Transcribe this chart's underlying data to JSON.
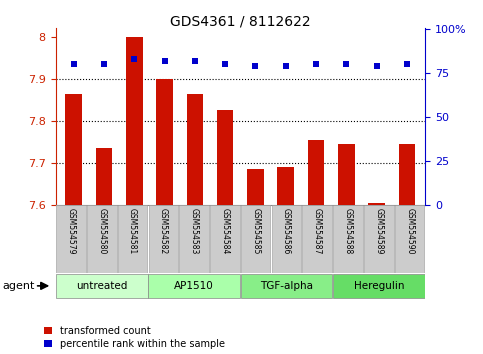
{
  "title": "GDS4361 / 8112622",
  "samples": [
    "GSM554579",
    "GSM554580",
    "GSM554581",
    "GSM554582",
    "GSM554583",
    "GSM554584",
    "GSM554585",
    "GSM554586",
    "GSM554587",
    "GSM554588",
    "GSM554589",
    "GSM554590"
  ],
  "bar_values": [
    7.865,
    7.735,
    8.0,
    7.9,
    7.865,
    7.825,
    7.685,
    7.69,
    7.755,
    7.745,
    7.605,
    7.745
  ],
  "percentile_values": [
    80,
    80,
    83,
    82,
    82,
    80,
    79,
    79,
    80,
    80,
    79,
    80
  ],
  "ylim_left": [
    7.6,
    8.02
  ],
  "ylim_right": [
    0,
    100.5
  ],
  "yticks_left": [
    7.6,
    7.7,
    7.8,
    7.9,
    8.0
  ],
  "ytick_labels_left": [
    "7.6",
    "7.7",
    "7.8",
    "7.9",
    "8"
  ],
  "yticks_right": [
    0,
    25,
    50,
    75,
    100
  ],
  "ytick_labels_right": [
    "0",
    "25",
    "50",
    "75",
    "100%"
  ],
  "hlines": [
    7.7,
    7.8,
    7.9
  ],
  "bar_color": "#cc1100",
  "dot_color": "#0000cc",
  "agent_groups": [
    {
      "label": "untreated",
      "start": 0,
      "end": 3,
      "color": "#ccffcc"
    },
    {
      "label": "AP1510",
      "start": 3,
      "end": 6,
      "color": "#aaffaa"
    },
    {
      "label": "TGF-alpha",
      "start": 6,
      "end": 9,
      "color": "#88ee88"
    },
    {
      "label": "Heregulin",
      "start": 9,
      "end": 12,
      "color": "#66dd66"
    }
  ],
  "tick_label_color_left": "#cc2200",
  "tick_label_color_right": "#0000cc",
  "bar_width": 0.55,
  "legend_red_label": "transformed count",
  "legend_blue_label": "percentile rank within the sample",
  "agent_label": "agent",
  "background_color": "#ffffff",
  "sample_cell_color": "#cccccc",
  "sample_cell_edge": "#999999"
}
